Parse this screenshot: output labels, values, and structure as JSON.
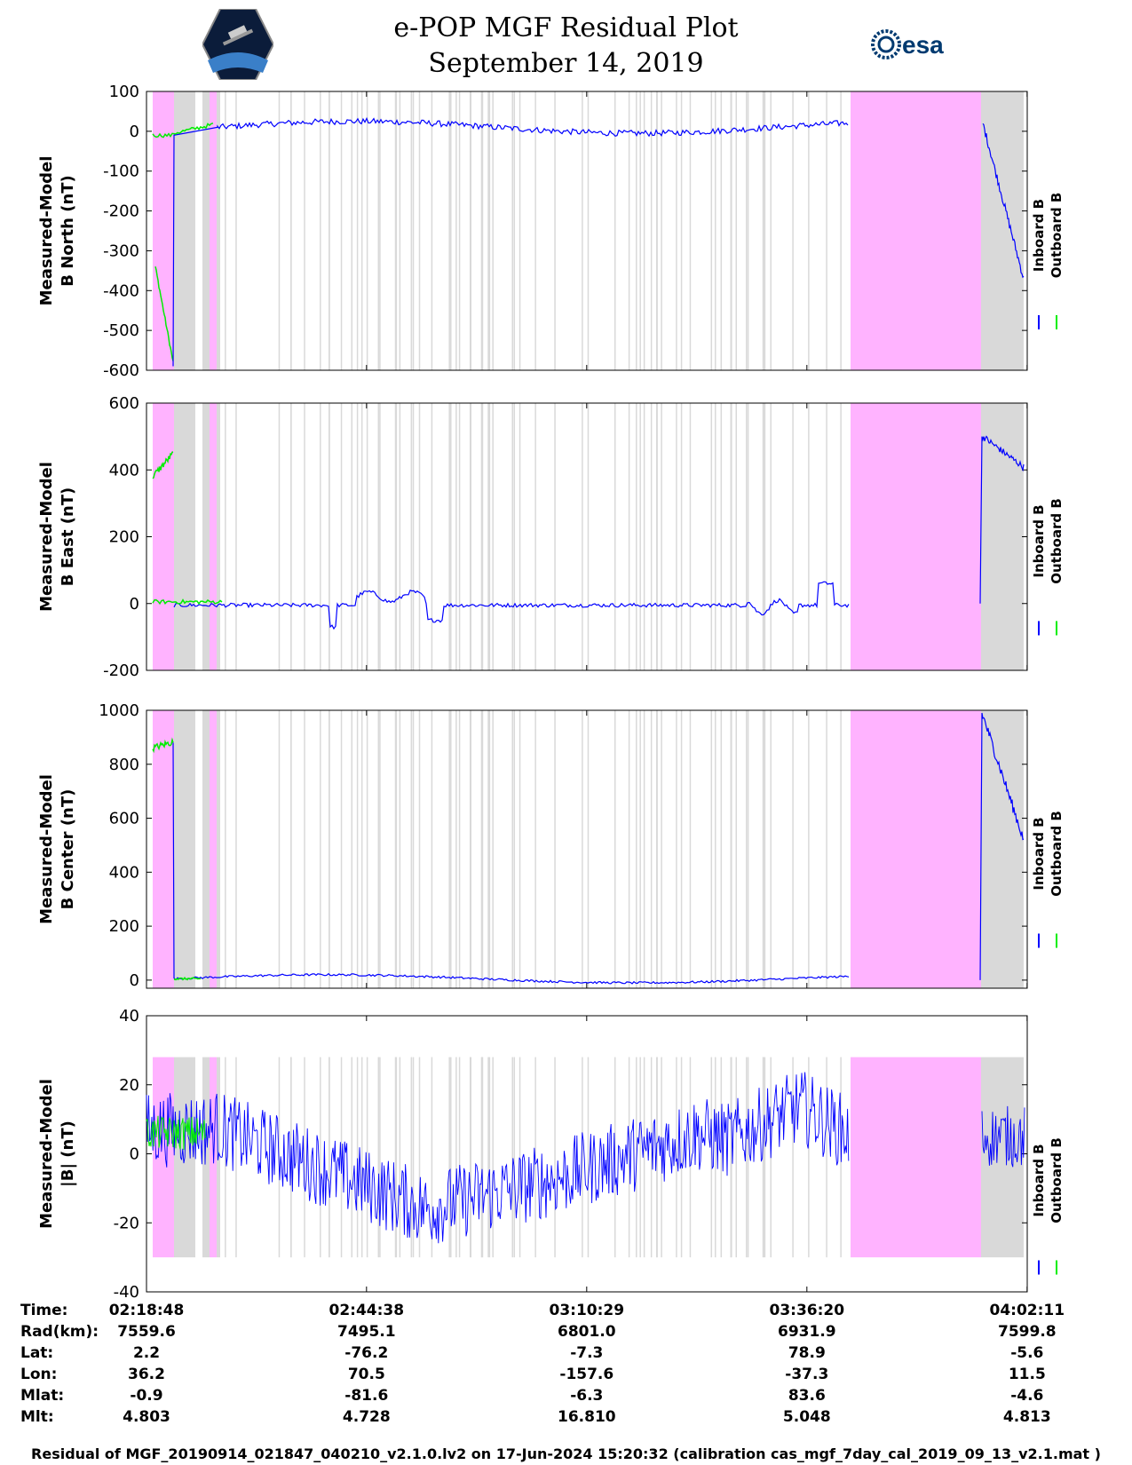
{
  "header": {
    "title_line1": "e-POP MGF Residual Plot",
    "title_line2": "September 14, 2019",
    "left_logo": "CASSIOPE",
    "right_logo": "esa"
  },
  "legend": {
    "inboard": "Inboard B",
    "outboard": "Outboard B"
  },
  "colors": {
    "inboard": "#0000ff",
    "outboard": "#00ee00",
    "shade_pink": "#ffb3ff",
    "shade_gray": "#d9d9d9"
  },
  "chart_data": [
    {
      "type": "line",
      "ylabel1": "Measured-Model",
      "ylabel2": "B North (nT)",
      "ylim": [
        -600,
        100
      ],
      "yticks": [
        100,
        0,
        -100,
        -200,
        -300,
        -400,
        -500,
        -600
      ]
    },
    {
      "type": "line",
      "ylabel1": "Measured-Model",
      "ylabel2": "B East (nT)",
      "ylim": [
        -200,
        600
      ],
      "yticks": [
        600,
        400,
        200,
        0,
        -200
      ]
    },
    {
      "type": "line",
      "ylabel1": "Measured-Model",
      "ylabel2": "B Center (nT)",
      "ylim": [
        -30,
        1000
      ],
      "yticks": [
        1000,
        800,
        600,
        400,
        200,
        0
      ]
    },
    {
      "type": "line",
      "ylabel1": "Measured-Model",
      "ylabel2": "|B| (nT)",
      "ylim": [
        -40,
        40
      ],
      "yticks": [
        40,
        20,
        0,
        -20,
        -40
      ]
    }
  ],
  "x_axis": {
    "range_minutes": [
      0,
      103.4
    ],
    "tick_minutes": [
      0,
      25.83,
      51.68,
      77.53,
      103.38
    ]
  },
  "ephemeris": {
    "row_labels": [
      "Time:",
      "Rad(km):",
      "Lat:",
      "Lon:",
      "Mlat:",
      "Mlt:"
    ],
    "columns": [
      [
        "02:18:48",
        "7559.6",
        "2.2",
        "36.2",
        "-0.9",
        "4.803"
      ],
      [
        "02:44:38",
        "7495.1",
        "-76.2",
        "70.5",
        "-81.6",
        "4.728"
      ],
      [
        "03:10:29",
        "6801.0",
        "-7.3",
        "-157.6",
        "-6.3",
        "16.810"
      ],
      [
        "03:36:20",
        "6931.9",
        "78.9",
        "-37.3",
        "83.6",
        "5.048"
      ],
      [
        "04:02:11",
        "7599.8",
        "-5.6",
        "11.5",
        "-4.6",
        "4.813"
      ]
    ]
  },
  "footer": "Residual of MGF_20190914_021847_040210_v2.1.0.lv2 on 17-Jun-2024 15:20:32 (calibration cas_mgf_7day_cal_2019_09_13_v2.1.mat )"
}
